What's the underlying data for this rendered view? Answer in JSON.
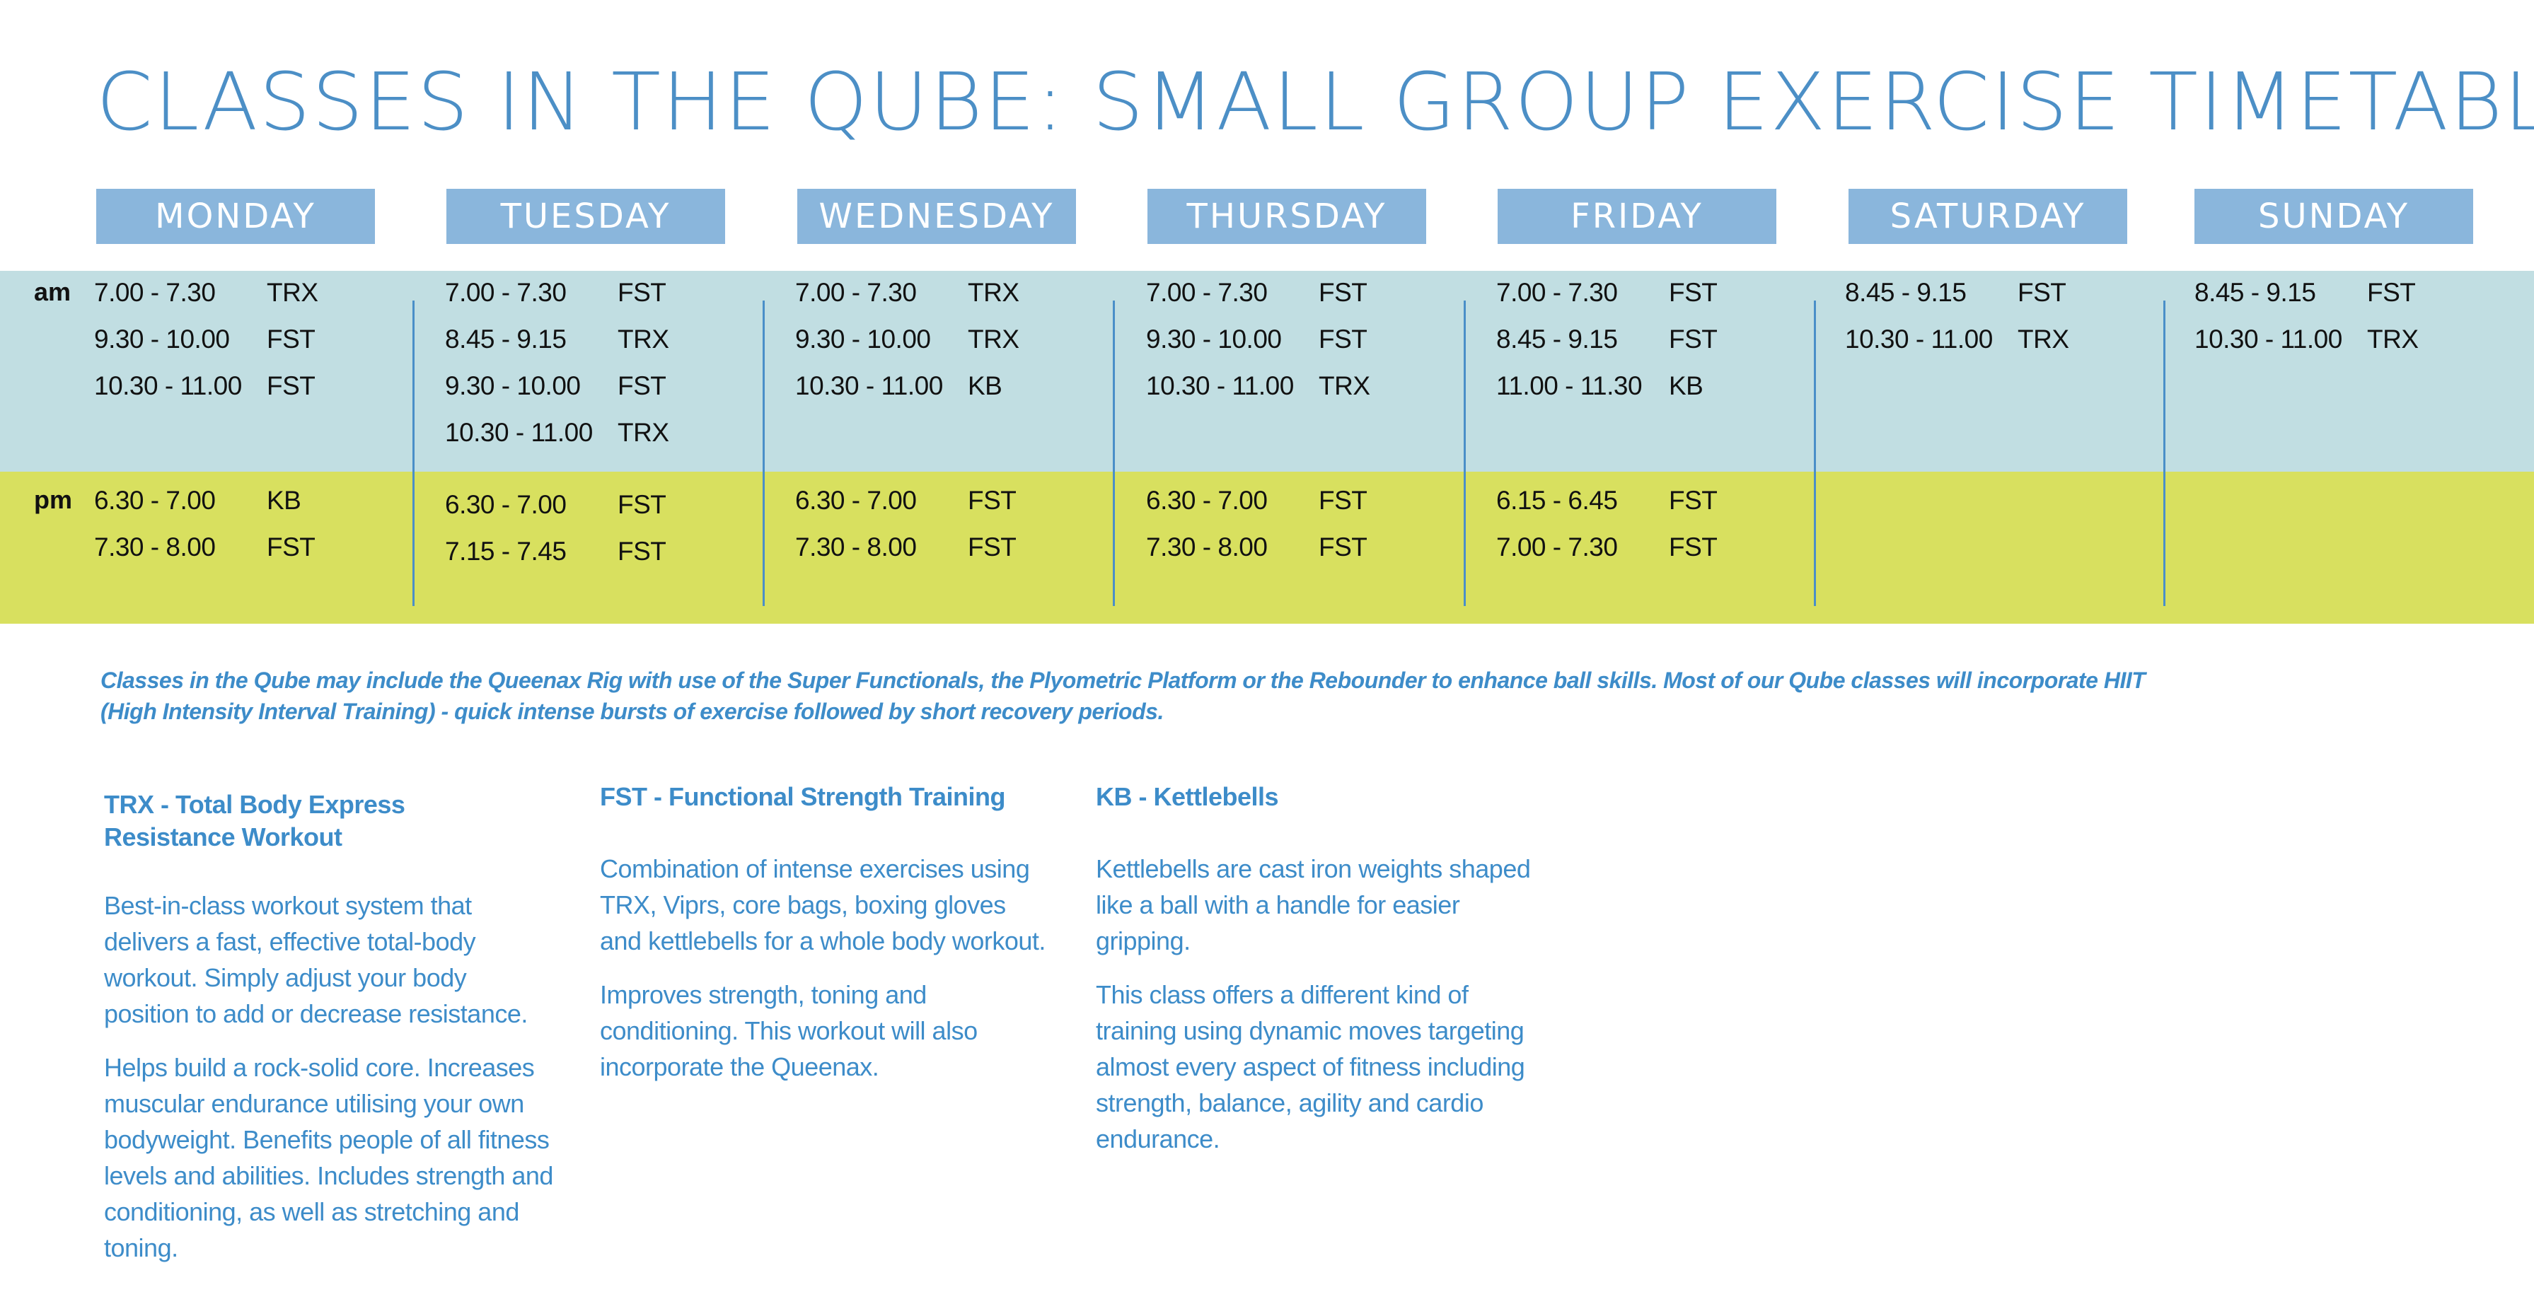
{
  "title": "CLASSES IN THE QUBE: SMALL GROUP EXERCISE TIMETABLE",
  "periods": {
    "am": "am",
    "pm": "pm"
  },
  "days": [
    {
      "name": "MONDAY",
      "am": [
        {
          "time": "7.00 - 7.30",
          "class": "TRX"
        },
        {
          "time": "9.30 - 10.00",
          "class": "FST"
        },
        {
          "time": "10.30 - 11.00",
          "class": "FST"
        }
      ],
      "pm": [
        {
          "time": "6.30 - 7.00",
          "class": "KB"
        },
        {
          "time": "7.30 - 8.00",
          "class": "FST"
        }
      ]
    },
    {
      "name": "TUESDAY",
      "am": [
        {
          "time": "7.00 - 7.30",
          "class": "FST"
        },
        {
          "time": "8.45 - 9.15",
          "class": "TRX"
        },
        {
          "time": "9.30 - 10.00",
          "class": "FST"
        },
        {
          "time": "10.30 - 11.00",
          "class": "TRX"
        }
      ],
      "pm": [
        {
          "time": "6.30 - 7.00",
          "class": "FST"
        },
        {
          "time": "7.15 - 7.45",
          "class": "FST"
        }
      ]
    },
    {
      "name": "WEDNESDAY",
      "am": [
        {
          "time": "7.00 - 7.30",
          "class": "TRX"
        },
        {
          "time": "9.30 - 10.00",
          "class": "TRX"
        },
        {
          "time": "10.30 - 11.00",
          "class": "KB"
        }
      ],
      "pm": [
        {
          "time": "6.30 - 7.00",
          "class": "FST"
        },
        {
          "time": "7.30 - 8.00",
          "class": "FST"
        }
      ]
    },
    {
      "name": "THURSDAY",
      "am": [
        {
          "time": "7.00 - 7.30",
          "class": "FST"
        },
        {
          "time": "9.30 - 10.00",
          "class": "FST"
        },
        {
          "time": "10.30 - 11.00",
          "class": "TRX"
        }
      ],
      "pm": [
        {
          "time": "6.30 - 7.00",
          "class": "FST"
        },
        {
          "time": "7.30 - 8.00",
          "class": "FST"
        }
      ]
    },
    {
      "name": "FRIDAY",
      "am": [
        {
          "time": "7.00 - 7.30",
          "class": "FST"
        },
        {
          "time": "8.45 - 9.15",
          "class": "FST"
        },
        {
          "time": "11.00 - 11.30",
          "class": "KB"
        }
      ],
      "pm": [
        {
          "time": "6.15 - 6.45",
          "class": "FST"
        },
        {
          "time": "7.00 - 7.30",
          "class": "FST"
        }
      ]
    },
    {
      "name": "SATURDAY",
      "am": [
        {
          "time": "8.45 - 9.15",
          "class": "FST"
        },
        {
          "time": "10.30 - 11.00",
          "class": "TRX"
        }
      ],
      "pm": []
    },
    {
      "name": "SUNDAY",
      "am": [
        {
          "time": "8.45 - 9.15",
          "class": "FST"
        },
        {
          "time": "10.30 - 11.00",
          "class": "TRX"
        }
      ],
      "pm": []
    }
  ],
  "note": "Classes in the Qube may include the Queenax Rig with use of the Super Functionals, the Plyometric Platform or the Rebounder to enhance ball skills. Most of our Qube classes will incorporate HIIT (High Intensity Interval Training) - quick intense bursts of exercise followed by short recovery periods.",
  "definitions": [
    {
      "title": "TRX - Total Body Express Resistance Workout",
      "paragraphs": [
        "Best-in-class workout system that delivers a fast, effective total-body workout. Simply adjust your body position to add or decrease resistance.",
        "Helps build a rock-solid core. Increases muscular endurance utilising your own bodyweight. Benefits people of all fitness levels and abilities. Includes strength and conditioning, as well as stretching and toning."
      ]
    },
    {
      "title": "FST - Functional Strength Training",
      "paragraphs": [
        "Combination of intense exercises using TRX, Viprs, core bags, boxing gloves and kettlebells for a whole body workout.",
        "Improves strength, toning and conditioning. This workout will also incorporate the Queenax."
      ]
    },
    {
      "title": "KB - Kettlebells",
      "paragraphs": [
        "Kettlebells are cast iron weights shaped like a ball with a handle for easier gripping.",
        "This class offers a different kind of training using dynamic moves targeting almost every aspect of fitness including strength, balance, agility and cardio endurance."
      ]
    }
  ],
  "colors": {
    "title": "#4c8fc6",
    "day_header_bg": "#8ab6dc",
    "am_band": "#c1dee2",
    "pm_band": "#d8e05f",
    "text_blue": "#3d8cc9",
    "divider": "#4a8fc8"
  }
}
